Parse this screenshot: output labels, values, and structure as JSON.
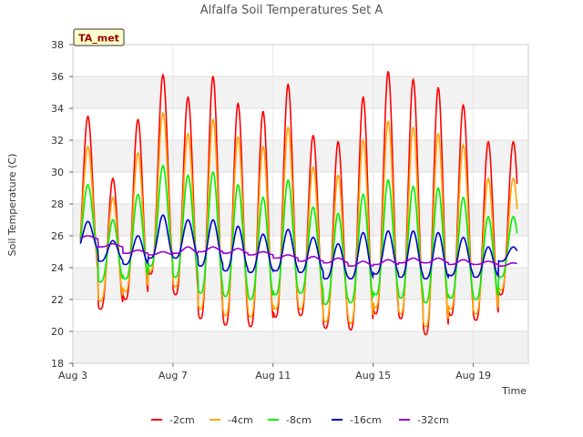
{
  "chart_data": {
    "type": "line",
    "title": "Alfalfa Soil Temperatures Set A",
    "xlabel": "Time",
    "ylabel": "Soil Temperature (C)",
    "ylim": [
      18,
      38
    ],
    "xlim": [
      3,
      21.2
    ],
    "yticks": [
      18,
      20,
      22,
      24,
      26,
      28,
      30,
      32,
      34,
      36,
      38
    ],
    "xticks": [
      {
        "value": 3,
        "label": "Aug 3"
      },
      {
        "value": 7,
        "label": "Aug 7"
      },
      {
        "value": 11,
        "label": "Aug 11"
      },
      {
        "value": 15,
        "label": "Aug 15"
      },
      {
        "value": 19,
        "label": "Aug 19"
      }
    ],
    "grid": "horizontal bands",
    "legend_position": "bottom",
    "annotation": "TA_met",
    "x_start": 3.3,
    "x_end": 20.75,
    "days": [
      3.3,
      4,
      5,
      6,
      7,
      8,
      9,
      10,
      11,
      12,
      13,
      14,
      15,
      16,
      17,
      18,
      19,
      20
    ],
    "series": [
      {
        "name": "-2cm",
        "color": "#ff0000",
        "minima": [
          23.5,
          21.4,
          22.0,
          23.6,
          22.3,
          20.8,
          20.4,
          20.3,
          20.9,
          21.0,
          20.2,
          20.1,
          21.1,
          20.8,
          19.8,
          21.0,
          20.7,
          22.3
        ],
        "maxima": [
          33.5,
          29.6,
          33.3,
          36.1,
          34.7,
          36.0,
          34.3,
          33.8,
          35.5,
          32.3,
          31.9,
          34.7,
          36.3,
          35.8,
          35.3,
          34.2,
          31.9,
          31.9
        ]
      },
      {
        "name": "-4cm",
        "color": "#ffa500",
        "minima": [
          23.9,
          21.9,
          22.5,
          23.8,
          22.8,
          21.4,
          21.0,
          20.9,
          21.4,
          21.4,
          20.6,
          20.5,
          21.5,
          21.1,
          20.3,
          21.4,
          21.1,
          22.6
        ],
        "maxima": [
          31.6,
          28.4,
          31.2,
          33.7,
          32.4,
          33.3,
          32.2,
          31.6,
          32.8,
          30.3,
          29.8,
          32.0,
          33.2,
          32.8,
          32.4,
          31.7,
          29.6,
          29.6
        ]
      },
      {
        "name": "-8cm",
        "color": "#00ee00",
        "minima": [
          24.6,
          23.1,
          23.3,
          24.1,
          23.4,
          22.4,
          22.2,
          22.0,
          22.3,
          22.4,
          21.7,
          21.8,
          22.3,
          22.1,
          21.8,
          22.1,
          22.0,
          23.4
        ],
        "maxima": [
          29.2,
          27.0,
          28.6,
          30.4,
          29.8,
          30.0,
          29.2,
          28.4,
          29.5,
          27.8,
          27.4,
          28.6,
          29.5,
          29.1,
          29.0,
          28.4,
          27.2,
          27.2
        ]
      },
      {
        "name": "-16cm",
        "color": "#0000cc",
        "minima": [
          25.1,
          24.4,
          24.2,
          24.6,
          24.6,
          24.1,
          23.8,
          23.7,
          23.8,
          23.7,
          23.3,
          23.3,
          23.6,
          23.4,
          23.3,
          23.5,
          23.4,
          24.4
        ],
        "maxima": [
          26.9,
          25.7,
          26.0,
          27.3,
          27.0,
          27.0,
          26.6,
          26.1,
          26.4,
          25.9,
          25.5,
          26.2,
          26.3,
          26.3,
          26.2,
          25.9,
          25.3,
          25.3
        ]
      },
      {
        "name": "-32cm",
        "color": "#9400d3",
        "minima": [
          25.8,
          25.3,
          24.9,
          24.8,
          24.9,
          25.0,
          24.9,
          24.8,
          24.6,
          24.4,
          24.3,
          24.1,
          24.2,
          24.3,
          24.3,
          24.2,
          24.2,
          24.1
        ],
        "maxima": [
          26.0,
          25.5,
          25.1,
          25.0,
          25.3,
          25.3,
          25.2,
          25.0,
          24.8,
          24.7,
          24.6,
          24.4,
          24.5,
          24.6,
          24.6,
          24.5,
          24.4,
          24.3
        ]
      }
    ]
  }
}
